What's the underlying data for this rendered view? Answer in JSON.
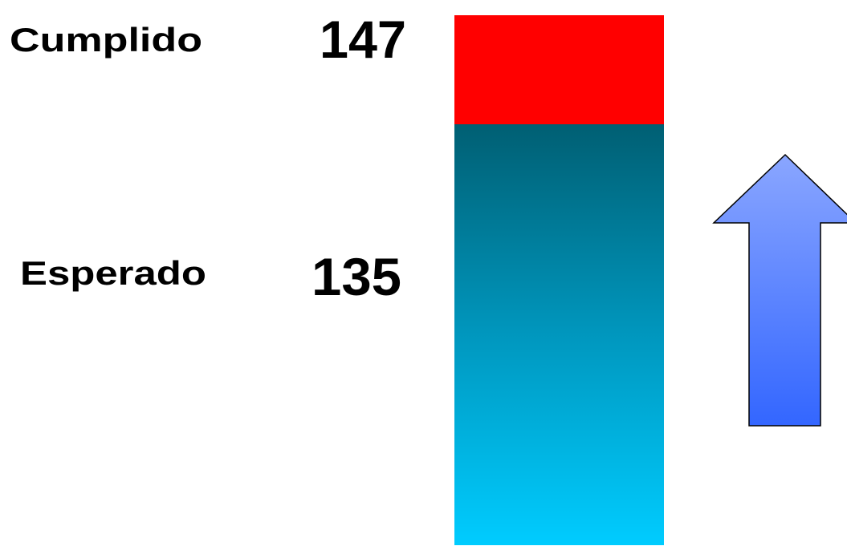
{
  "items": [
    {
      "label": "Cumplido",
      "value": "147"
    },
    {
      "label": "Esperado",
      "value": "135"
    }
  ]
}
